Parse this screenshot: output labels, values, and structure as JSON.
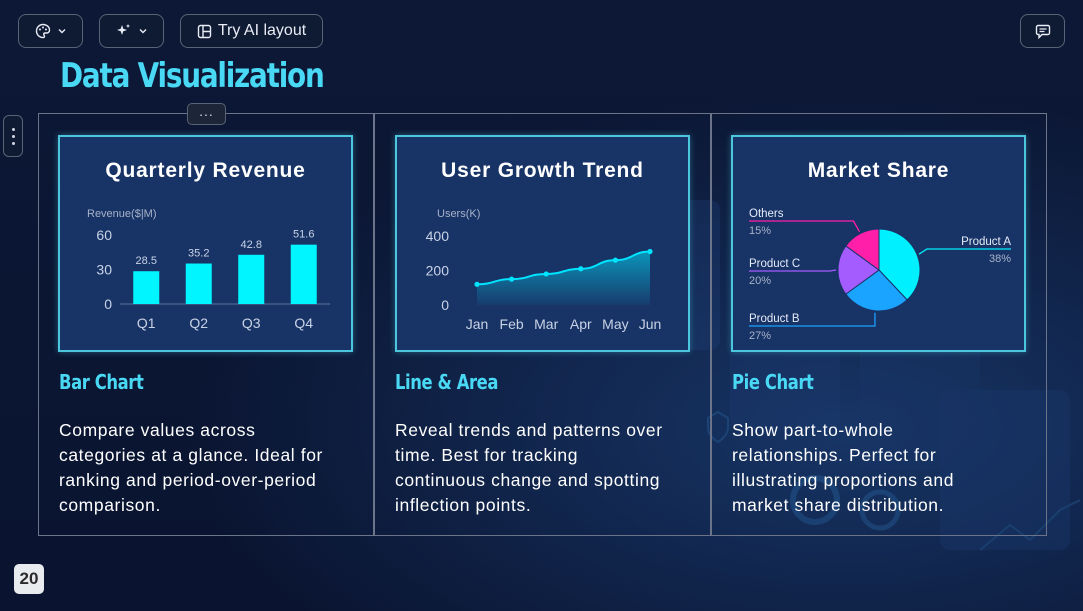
{
  "toolbar": {
    "palette_icon": "palette-icon",
    "sparkle_icon": "sparkle-icon",
    "ai_layout_label": "Try AI layout",
    "comment_icon": "comment-icon"
  },
  "slide": {
    "title": "Data Visualization",
    "more_label": "...",
    "page_number": "20"
  },
  "cards": [
    {
      "chart_title": "Quarterly Revenue",
      "subtitle": "Bar Chart",
      "desc_lines": [
        "Compare values across",
        "categories at a glance. Ideal for",
        "ranking and period-over-period",
        "comparison."
      ]
    },
    {
      "chart_title": "User Growth Trend",
      "subtitle": "Line & Area",
      "desc_lines": [
        "Reveal trends and patterns over",
        "time. Best for tracking",
        "continuous change and spotting",
        "inflection points."
      ]
    },
    {
      "chart_title": "Market Share",
      "subtitle": "Pie Chart",
      "desc_lines": [
        "Show part-to-whole",
        "relationships. Perfect for",
        "illustrating proportions and",
        "market share distribution."
      ]
    }
  ],
  "chart_data": [
    {
      "type": "bar",
      "title": "Quarterly Revenue",
      "ylabel": "Revenue($|M)",
      "categories": [
        "Q1",
        "Q2",
        "Q3",
        "Q4"
      ],
      "values": [
        28.5,
        35.2,
        42.8,
        51.6
      ],
      "ticks": [
        0,
        30,
        60
      ],
      "ylim": [
        0,
        60
      ],
      "color": "#00f5ff"
    },
    {
      "type": "area",
      "title": "User Growth Trend",
      "ylabel": "Users(K)",
      "categories": [
        "Jan",
        "Feb",
        "Mar",
        "Apr",
        "May",
        "Jun"
      ],
      "values": [
        120,
        150,
        180,
        210,
        260,
        310
      ],
      "ticks": [
        0,
        200,
        400
      ],
      "ylim": [
        0,
        400
      ],
      "color": "#00e5ff"
    },
    {
      "type": "pie",
      "title": "Market Share",
      "slices": [
        {
          "label": "Product A",
          "pct": "38%",
          "value": 38,
          "color": "#00f0ff"
        },
        {
          "label": "Product B",
          "pct": "27%",
          "value": 27,
          "color": "#1aa3ff"
        },
        {
          "label": "Product C",
          "pct": "20%",
          "value": 20,
          "color": "#a45cff"
        },
        {
          "label": "Others",
          "pct": "15%",
          "value": 15,
          "color": "#ff1fa8"
        }
      ]
    }
  ]
}
